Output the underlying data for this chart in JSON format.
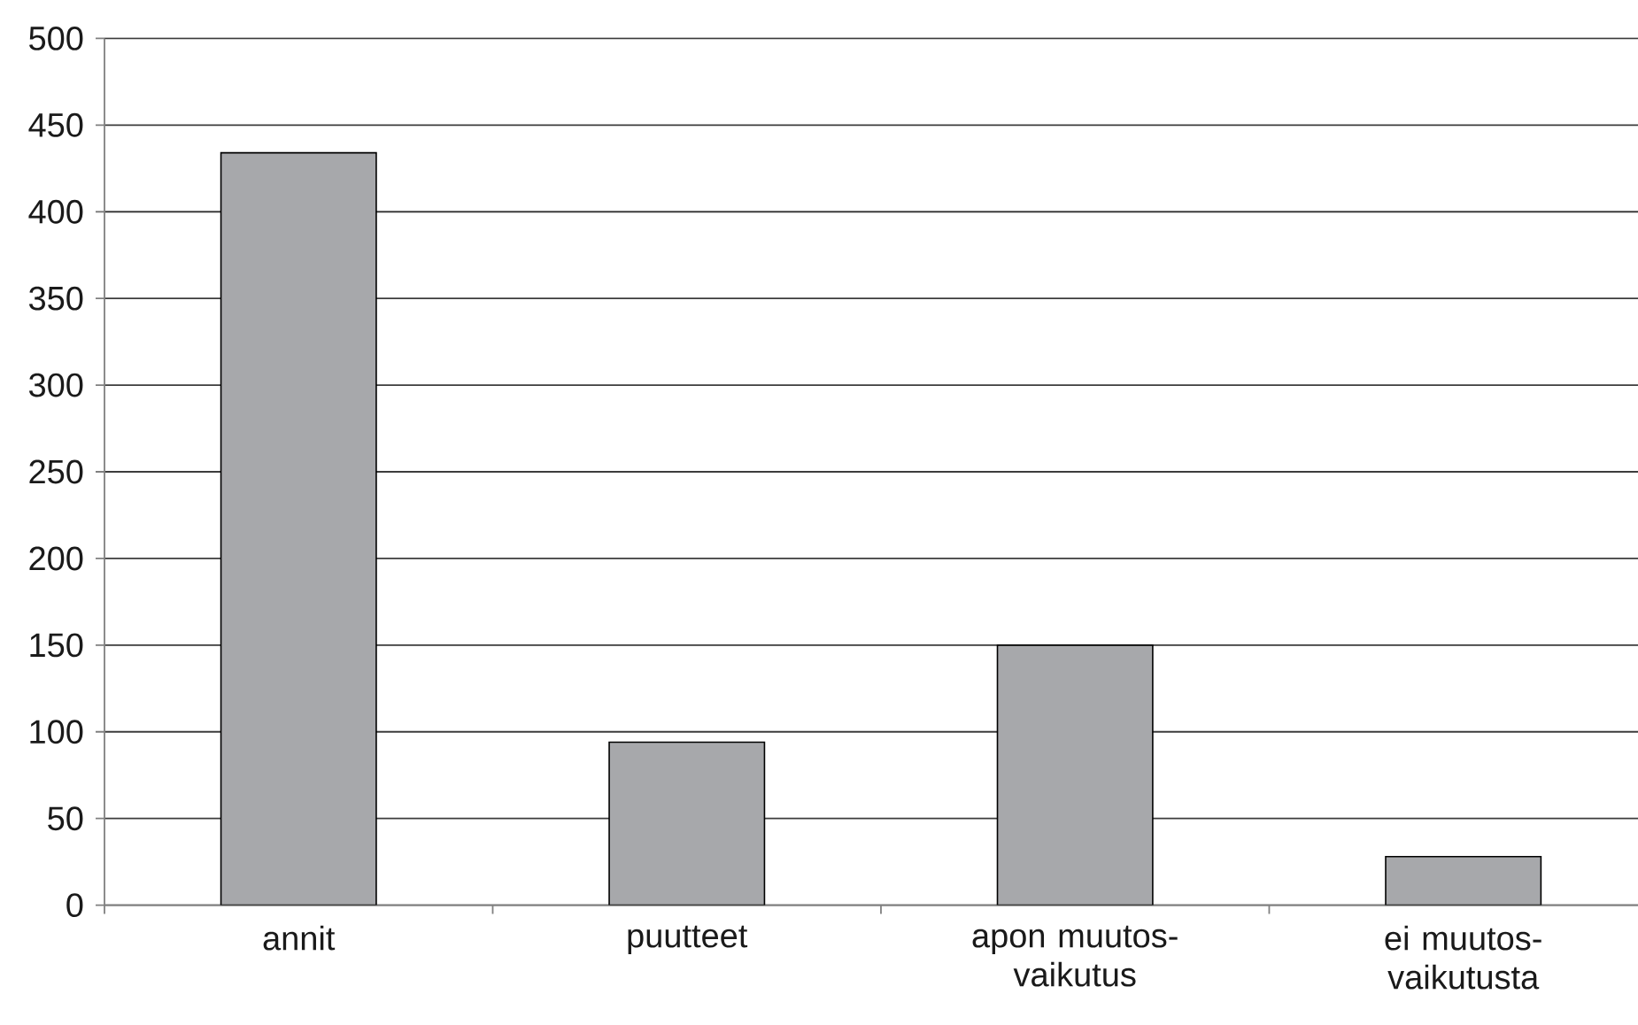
{
  "chart_data": {
    "type": "bar",
    "categories": [
      "annit",
      "puutteet",
      "apon muutos-vaikutus",
      "ei muutos-vaikutusta"
    ],
    "values": [
      434,
      94,
      150,
      28
    ],
    "color": "#a7a8ab",
    "ylim": [
      0,
      500
    ],
    "yticks": [
      0,
      50,
      100,
      150,
      200,
      250,
      300,
      350,
      400,
      450,
      500
    ],
    "grid": "y"
  }
}
